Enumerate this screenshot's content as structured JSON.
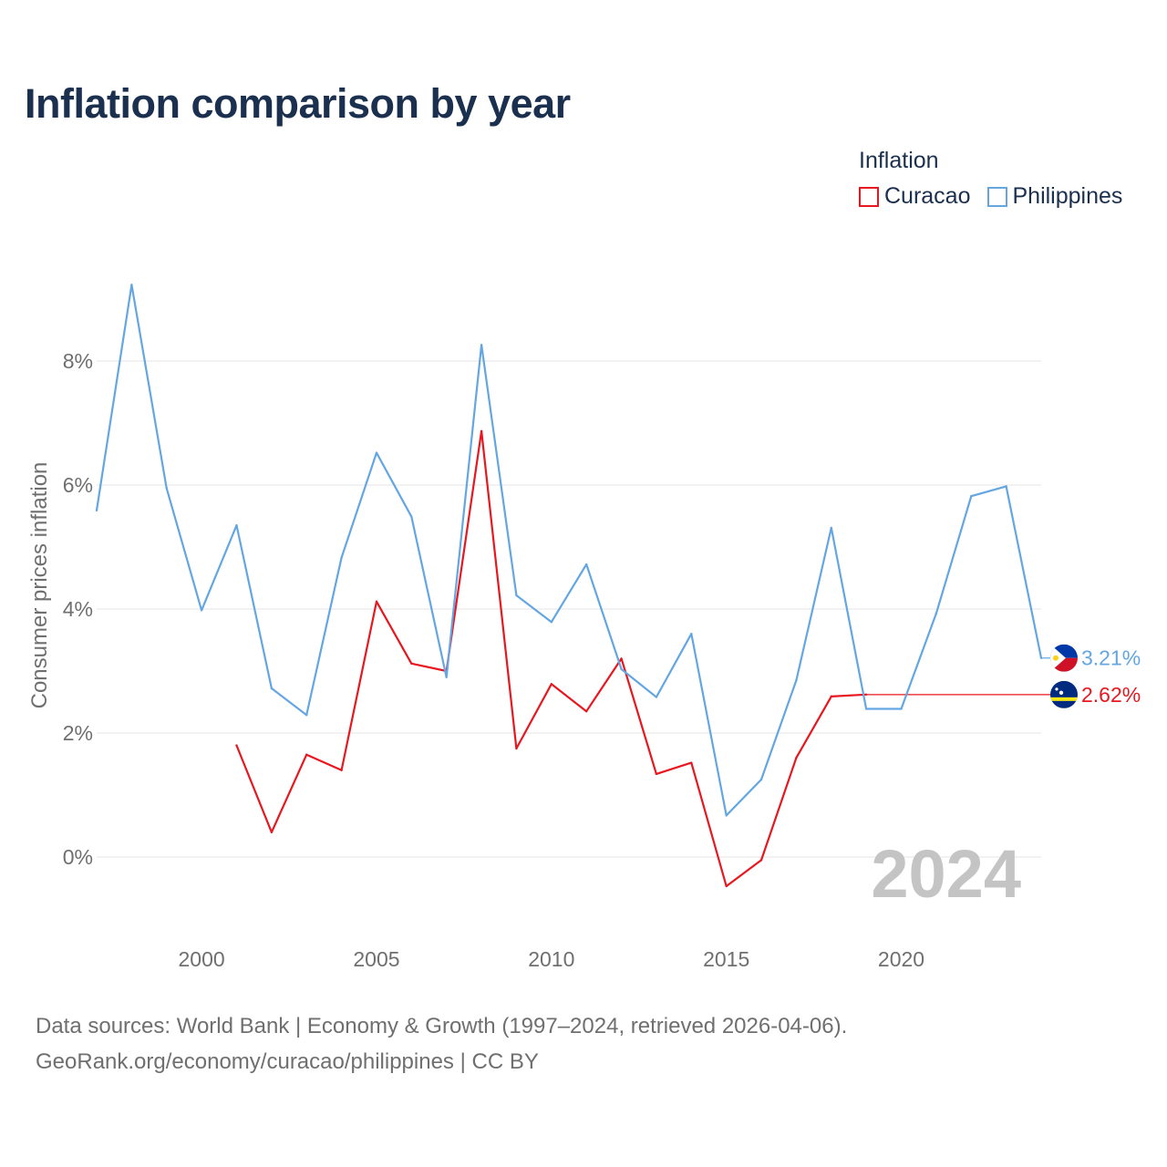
{
  "title": "Inflation comparison by year",
  "legend": {
    "title": "Inflation",
    "items": [
      {
        "label": "Curacao",
        "color": "#e8171f"
      },
      {
        "label": "Philippines",
        "color": "#63a6e2"
      }
    ]
  },
  "footer": {
    "line1": "Data sources: World Bank | Economy & Growth (1997–2024, retrieved 2026-04-06).",
    "line2": "GeoRank.org/economy/curacao/philippines | CC BY"
  },
  "chart_data": {
    "type": "line",
    "title": "Inflation comparison by year",
    "xlabel": "",
    "ylabel": "Consumer prices inflation",
    "xlim": [
      1997,
      2024
    ],
    "ylim": [
      -1.0,
      9.5
    ],
    "x_ticks": [
      2000,
      2005,
      2010,
      2015,
      2020
    ],
    "y_ticks": [
      0,
      2,
      4,
      6,
      8
    ],
    "y_tick_labels": [
      "0%",
      "2%",
      "4%",
      "6%",
      "8%"
    ],
    "grid": true,
    "legend_position": "top-right",
    "year_watermark": "2024",
    "series": [
      {
        "name": "Curacao",
        "color": "#e8171f",
        "end_label": "2.62%",
        "x": [
          2001,
          2002,
          2003,
          2004,
          2005,
          2006,
          2007,
          2008,
          2009,
          2010,
          2011,
          2012,
          2013,
          2014,
          2015,
          2016,
          2017,
          2018,
          2019
        ],
        "values": [
          1.8,
          0.4,
          1.65,
          1.4,
          4.12,
          3.12,
          3.0,
          6.87,
          1.75,
          2.79,
          2.35,
          3.2,
          1.34,
          1.52,
          -0.47,
          -0.05,
          1.6,
          2.59,
          2.62
        ],
        "carry_forward_to": 2024
      },
      {
        "name": "Philippines",
        "color": "#63a6e2",
        "end_label": "3.21%",
        "x": [
          1997,
          1998,
          1999,
          2000,
          2001,
          2002,
          2003,
          2004,
          2005,
          2006,
          2007,
          2008,
          2009,
          2010,
          2011,
          2012,
          2013,
          2014,
          2015,
          2016,
          2017,
          2018,
          2019,
          2020,
          2021,
          2022,
          2023,
          2024
        ],
        "values": [
          5.59,
          9.23,
          5.95,
          3.98,
          5.35,
          2.72,
          2.29,
          4.83,
          6.52,
          5.49,
          2.9,
          8.26,
          4.22,
          3.79,
          4.72,
          3.03,
          2.58,
          3.6,
          0.67,
          1.25,
          2.85,
          5.31,
          2.39,
          2.39,
          3.93,
          5.82,
          5.98,
          3.21
        ]
      }
    ]
  }
}
